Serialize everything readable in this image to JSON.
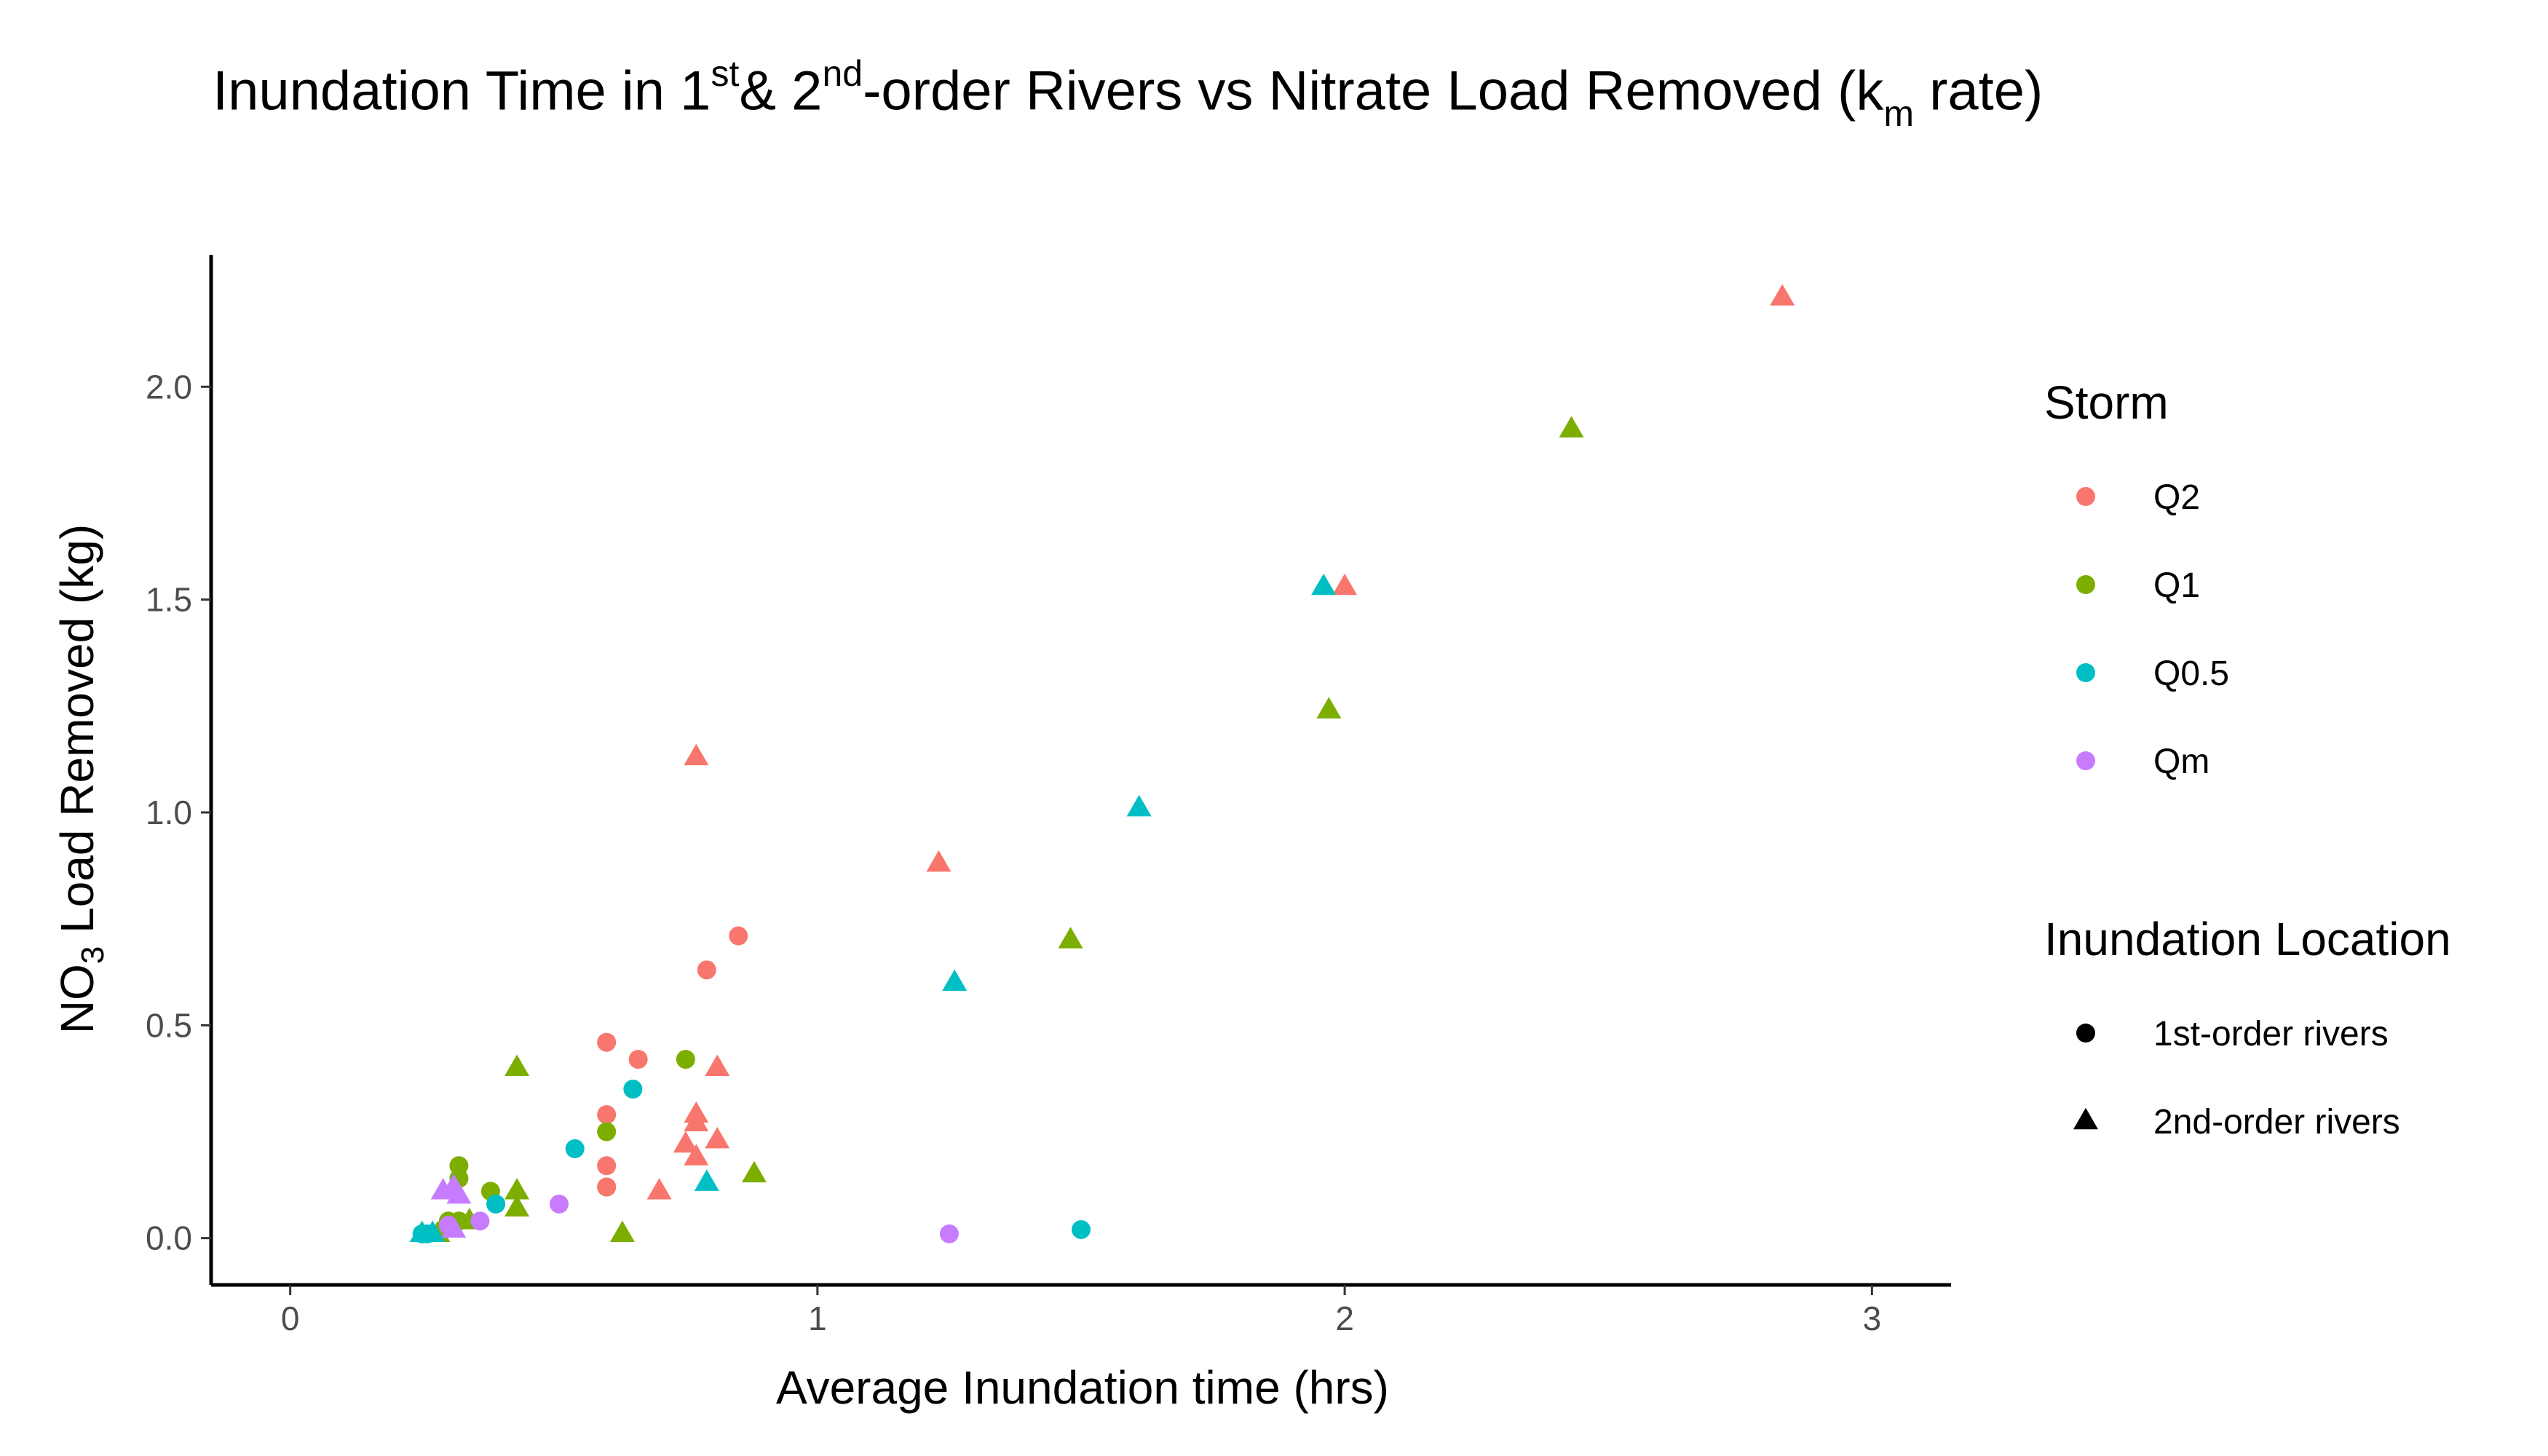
{
  "title": {
    "part1": "Inundation Time in 1",
    "sup1": "st",
    "part2": "& 2",
    "sup2": "nd",
    "part3": "-order Rivers vs Nitrate Load Removed (k",
    "sub1": "m",
    "part4": " rate)"
  },
  "chart_data": {
    "type": "scatter",
    "xlabel": "Average Inundation time (hrs)",
    "ylabel_main": "NO",
    "ylabel_sub": "3",
    "ylabel_rest": " Load Removed (kg)",
    "xlim": [
      -0.15,
      3.15
    ],
    "ylim": [
      -0.11,
      2.31
    ],
    "x_ticks": [
      0,
      1,
      2,
      3
    ],
    "x_tick_labels": [
      "0",
      "1",
      "2",
      "3"
    ],
    "y_ticks": [
      0,
      0.5,
      1,
      1.5,
      2
    ],
    "y_tick_labels": [
      "0.0",
      "0.5",
      "1.0",
      "1.5",
      "2.0"
    ],
    "grid": false,
    "legend_placement": "right",
    "legends": {
      "color": {
        "title": "Storm",
        "entries": [
          {
            "key": "Q2",
            "label": "Q2",
            "color": "#F8766D"
          },
          {
            "key": "Q1",
            "label": "Q1",
            "color": "#7CAE00"
          },
          {
            "key": "Q0.5",
            "label": "Q0.5",
            "color": "#00BFC4"
          },
          {
            "key": "Qm",
            "label": "Qm",
            "color": "#C77CFF"
          }
        ]
      },
      "shape": {
        "title": "Inundation Location",
        "entries": [
          {
            "key": "1st",
            "label": "1st-order rivers",
            "shape": "circle"
          },
          {
            "key": "2nd",
            "label": "2nd-order rivers",
            "shape": "triangle"
          }
        ]
      }
    },
    "series": [
      {
        "storm": "Q2",
        "location": "1st",
        "points": [
          [
            0.6,
            0.46
          ],
          [
            0.66,
            0.42
          ],
          [
            0.79,
            0.63
          ],
          [
            0.85,
            0.71
          ],
          [
            0.6,
            0.29
          ],
          [
            0.6,
            0.17
          ],
          [
            0.6,
            0.12
          ],
          [
            0.6,
            0.12
          ]
        ]
      },
      {
        "storm": "Q2",
        "location": "2nd",
        "points": [
          [
            2.83,
            2.21
          ],
          [
            2.0,
            1.53
          ],
          [
            0.77,
            1.13
          ],
          [
            1.23,
            0.88
          ],
          [
            0.81,
            0.4
          ],
          [
            0.77,
            0.29
          ],
          [
            0.77,
            0.27
          ],
          [
            0.81,
            0.23
          ],
          [
            0.75,
            0.22
          ],
          [
            0.77,
            0.19
          ],
          [
            0.7,
            0.11
          ]
        ]
      },
      {
        "storm": "Q1",
        "location": "1st",
        "points": [
          [
            0.75,
            0.42
          ],
          [
            0.6,
            0.25
          ],
          [
            0.32,
            0.17
          ],
          [
            0.32,
            0.14
          ],
          [
            0.38,
            0.11
          ],
          [
            0.3,
            0.04
          ],
          [
            0.32,
            0.04
          ]
        ]
      },
      {
        "storm": "Q1",
        "location": "2nd",
        "points": [
          [
            2.43,
            1.9
          ],
          [
            1.97,
            1.24
          ],
          [
            1.48,
            0.7
          ],
          [
            0.43,
            0.4
          ],
          [
            0.88,
            0.15
          ],
          [
            0.43,
            0.11
          ],
          [
            0.43,
            0.07
          ],
          [
            0.63,
            0.01
          ],
          [
            0.28,
            0.01
          ],
          [
            0.34,
            0.04
          ]
        ]
      },
      {
        "storm": "Q0.5",
        "location": "1st",
        "points": [
          [
            0.65,
            0.35
          ],
          [
            0.54,
            0.21
          ],
          [
            0.39,
            0.08
          ],
          [
            1.5,
            0.02
          ],
          [
            0.25,
            0.01
          ],
          [
            0.26,
            0.01
          ]
        ]
      },
      {
        "storm": "Q0.5",
        "location": "2nd",
        "points": [
          [
            1.96,
            1.53
          ],
          [
            1.61,
            1.01
          ],
          [
            1.26,
            0.6
          ],
          [
            0.79,
            0.13
          ],
          [
            0.25,
            0.01
          ],
          [
            0.27,
            0.01
          ]
        ]
      },
      {
        "storm": "Qm",
        "location": "1st",
        "points": [
          [
            0.51,
            0.08
          ],
          [
            0.36,
            0.04
          ],
          [
            1.25,
            0.01
          ],
          [
            0.3,
            0.03
          ]
        ]
      },
      {
        "storm": "Qm",
        "location": "2nd",
        "points": [
          [
            0.29,
            0.11
          ],
          [
            0.31,
            0.12
          ],
          [
            0.32,
            0.1
          ],
          [
            0.31,
            0.02
          ]
        ]
      }
    ]
  }
}
